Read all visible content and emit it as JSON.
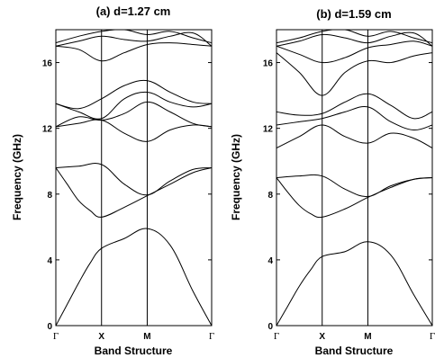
{
  "chart_data": [
    {
      "type": "line",
      "title": "(a) d=1.27 cm",
      "ylabel": "Frequency (GHz)",
      "xlabel": "Band Structure",
      "k_points": [
        "Γ",
        "X",
        "M",
        "Γ"
      ],
      "k_positions": [
        0,
        1,
        2,
        3.41
      ],
      "ylim": [
        0,
        18
      ],
      "yticks": [
        0,
        4,
        8,
        12,
        16
      ],
      "series": [
        {
          "x": [
            0,
            0.25,
            0.5,
            0.75,
            1,
            1.5,
            2,
            2.5,
            3,
            3.41
          ],
          "y": [
            0,
            1.3,
            2.6,
            3.8,
            4.7,
            5.3,
            5.9,
            4.9,
            2.1,
            0
          ]
        },
        {
          "x": [
            0,
            0.25,
            0.5,
            0.75,
            1,
            1.5,
            2,
            2.5,
            3,
            3.41
          ],
          "y": [
            9.6,
            8.6,
            7.6,
            7.0,
            6.6,
            7.2,
            7.9,
            8.6,
            9.3,
            9.6
          ]
        },
        {
          "x": [
            0,
            0.5,
            1,
            1.5,
            2,
            2.5,
            3,
            3.41
          ],
          "y": [
            9.6,
            9.7,
            9.8,
            8.6,
            7.95,
            8.8,
            9.5,
            9.6
          ]
        },
        {
          "x": [
            0,
            0.5,
            1,
            1.5,
            2,
            2.5,
            3,
            3.41
          ],
          "y": [
            12.1,
            12.3,
            12.5,
            11.7,
            11.2,
            11.9,
            12.2,
            12.1
          ]
        },
        {
          "x": [
            0,
            0.5,
            1,
            1.5,
            2,
            2.5,
            3,
            3.41
          ],
          "y": [
            12.1,
            12.7,
            12.5,
            12.9,
            13.6,
            13.0,
            12.3,
            12.1
          ]
        },
        {
          "x": [
            0,
            0.5,
            1,
            1.5,
            2,
            2.5,
            3,
            3.41
          ],
          "y": [
            13.5,
            13.0,
            12.6,
            13.8,
            14.2,
            13.6,
            13.3,
            13.5
          ]
        },
        {
          "x": [
            0,
            0.5,
            1,
            1.5,
            2,
            2.5,
            3,
            3.41
          ],
          "y": [
            13.5,
            13.2,
            13.8,
            14.6,
            14.9,
            14.2,
            13.6,
            13.5
          ]
        },
        {
          "x": [
            0,
            0.5,
            1,
            1.5,
            2,
            2.5,
            3,
            3.41
          ],
          "y": [
            17.0,
            16.8,
            16.1,
            16.6,
            17.1,
            17.2,
            17.1,
            17.0
          ]
        },
        {
          "x": [
            0,
            0.5,
            1,
            1.5,
            2,
            2.5,
            3,
            3.41
          ],
          "y": [
            17.0,
            17.3,
            17.6,
            17.4,
            17.3,
            17.6,
            17.8,
            17.0
          ]
        },
        {
          "x": [
            0,
            0.5,
            1,
            1.5,
            2,
            2.5,
            3,
            3.41
          ],
          "y": [
            17.2,
            17.6,
            17.9,
            18.0,
            17.7,
            17.9,
            17.5,
            17.2
          ]
        }
      ]
    },
    {
      "type": "line",
      "title": "(b) d=1.59 cm",
      "ylabel": "Frequency (GHz)",
      "xlabel": "Band Structure",
      "k_points": [
        "Γ",
        "X",
        "M",
        "Γ"
      ],
      "k_positions": [
        0,
        1,
        2,
        3.41
      ],
      "ylim": [
        0,
        18
      ],
      "yticks": [
        0,
        4,
        8,
        12,
        16
      ],
      "series": [
        {
          "x": [
            0,
            0.25,
            0.5,
            0.75,
            1,
            1.5,
            2,
            2.5,
            3,
            3.41
          ],
          "y": [
            0,
            1.2,
            2.4,
            3.4,
            4.2,
            4.5,
            5.1,
            4.3,
            1.9,
            0
          ]
        },
        {
          "x": [
            0,
            0.25,
            0.5,
            0.75,
            1,
            1.5,
            2,
            2.5,
            3,
            3.41
          ],
          "y": [
            9.0,
            8.1,
            7.3,
            6.8,
            6.6,
            7.1,
            7.8,
            8.4,
            8.9,
            9.0
          ]
        },
        {
          "x": [
            0,
            0.5,
            1,
            1.5,
            2,
            2.5,
            3,
            3.41
          ],
          "y": [
            9.0,
            9.1,
            9.1,
            8.3,
            7.85,
            8.5,
            8.9,
            9.0
          ]
        },
        {
          "x": [
            0,
            0.5,
            1,
            1.5,
            2,
            2.5,
            3,
            3.41
          ],
          "y": [
            10.8,
            11.5,
            12.2,
            11.5,
            11.1,
            11.7,
            11.4,
            10.8
          ]
        },
        {
          "x": [
            0,
            0.5,
            1,
            1.5,
            2,
            2.5,
            3,
            3.41
          ],
          "y": [
            12.2,
            12.4,
            12.6,
            13.0,
            13.3,
            12.4,
            11.9,
            12.2
          ]
        },
        {
          "x": [
            0,
            0.5,
            1,
            1.5,
            2,
            2.5,
            3,
            3.41
          ],
          "y": [
            13.0,
            12.8,
            12.9,
            13.6,
            14.1,
            13.4,
            12.6,
            13.0
          ]
        },
        {
          "x": [
            0,
            0.5,
            1,
            1.5,
            2,
            2.5,
            3,
            3.41
          ],
          "y": [
            16.6,
            15.4,
            14.0,
            15.4,
            16.1,
            16.0,
            16.4,
            16.6
          ]
        },
        {
          "x": [
            0,
            0.5,
            1,
            1.5,
            2,
            2.5,
            3,
            3.41
          ],
          "y": [
            17.0,
            16.5,
            16.0,
            16.3,
            16.9,
            17.1,
            17.3,
            17.0
          ]
        },
        {
          "x": [
            0,
            0.5,
            1,
            1.5,
            2,
            2.5,
            3,
            3.41
          ],
          "y": [
            17.0,
            17.3,
            17.7,
            17.5,
            17.2,
            17.6,
            17.8,
            17.0
          ]
        },
        {
          "x": [
            0,
            0.5,
            1,
            1.5,
            2,
            2.5,
            3,
            3.41
          ],
          "y": [
            17.2,
            17.5,
            17.9,
            18.0,
            17.6,
            17.9,
            17.5,
            17.2
          ]
        }
      ]
    }
  ]
}
